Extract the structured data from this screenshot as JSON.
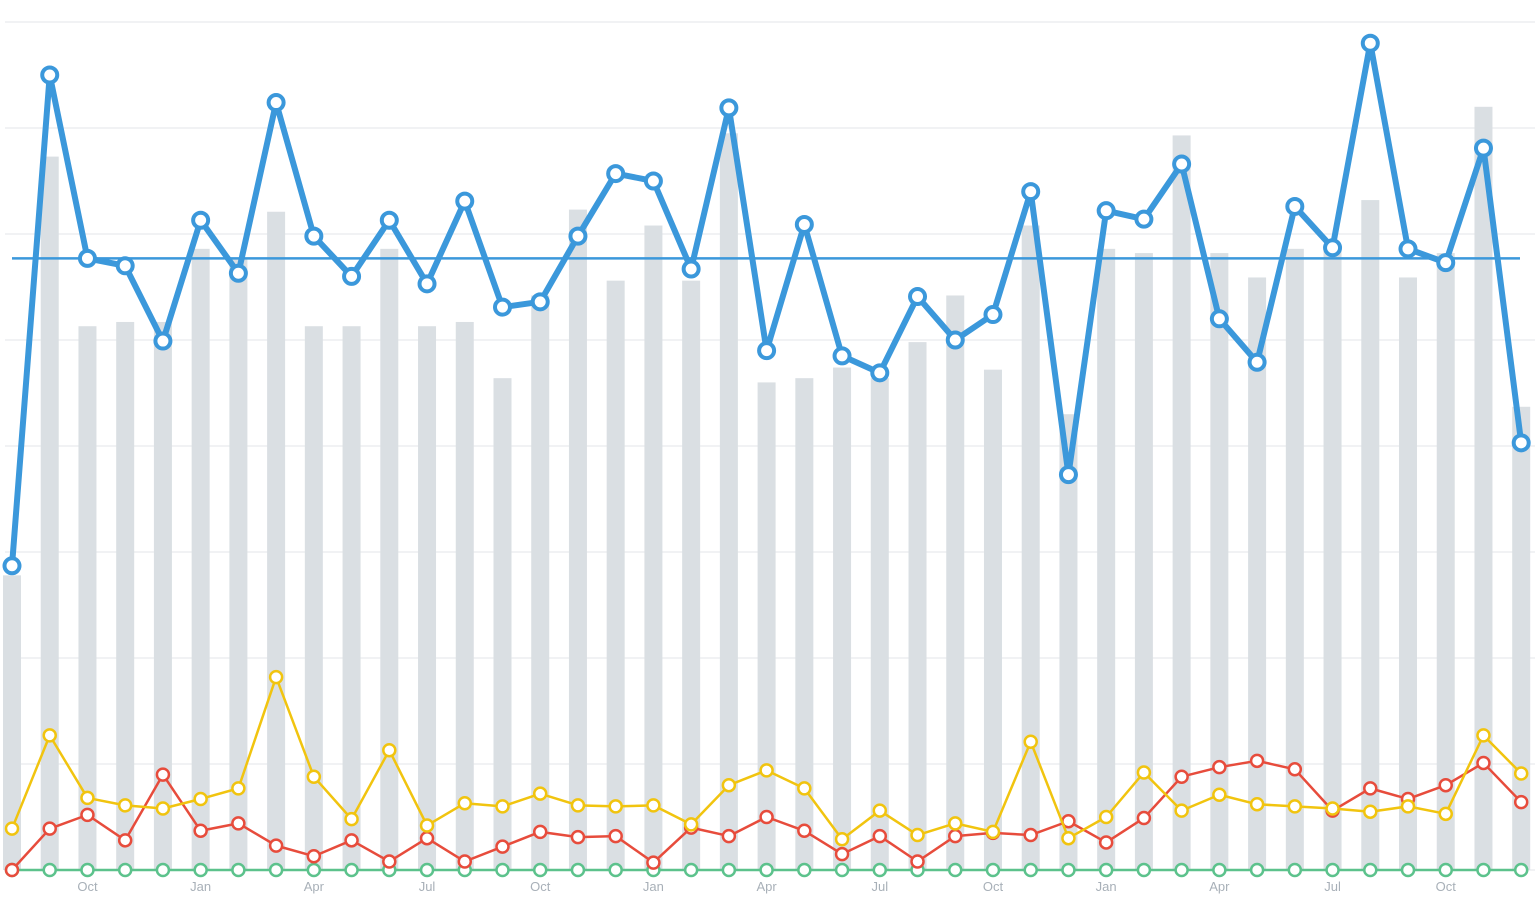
{
  "chart_data": {
    "type": "bar",
    "x_tick_labels": [
      "Oct",
      "Jan",
      "Apr",
      "Jul",
      "Oct",
      "Jan",
      "Apr",
      "Jul",
      "Oct",
      "Jan",
      "Apr",
      "Jul",
      "Oct"
    ],
    "x_tick_positions": [
      2,
      5,
      8,
      11,
      14,
      17,
      20,
      23,
      26,
      29,
      32,
      35,
      38
    ],
    "ylim": [
      0,
      8
    ],
    "grid": true,
    "legend": "none",
    "reference_line": 5.77,
    "colors": {
      "bars": "#dadfe3",
      "blue": "#3b98db",
      "yellow": "#f1c40f",
      "red": "#e74c3c",
      "green": "#5cc28c",
      "grid": "#e3e6e9",
      "tick_text": "#a8b0b8"
    },
    "bars": [
      2.78,
      6.73,
      5.13,
      5.17,
      5.17,
      5.86,
      5.76,
      6.21,
      5.13,
      5.13,
      5.86,
      5.13,
      5.17,
      4.64,
      5.42,
      6.23,
      5.56,
      6.08,
      5.56,
      6.95,
      4.6,
      4.64,
      4.74,
      4.64,
      4.98,
      5.42,
      4.72,
      6.08,
      4.3,
      5.86,
      5.82,
      6.93,
      5.82,
      5.59,
      5.86,
      5.86,
      6.32,
      5.59,
      5.82,
      7.2,
      4.37
    ],
    "series": [
      {
        "color": "blue",
        "values": [
          2.87,
          7.5,
          5.77,
          5.7,
          4.99,
          6.13,
          5.63,
          7.24,
          5.98,
          5.6,
          6.13,
          5.53,
          6.31,
          5.31,
          5.36,
          5.98,
          6.57,
          6.5,
          5.67,
          7.19,
          4.9,
          6.09,
          4.85,
          4.69,
          5.41,
          5.0,
          5.24,
          6.4,
          3.73,
          6.22,
          6.14,
          6.66,
          5.2,
          4.79,
          6.26,
          5.87,
          7.8,
          5.86,
          5.73,
          6.81,
          4.03
        ]
      },
      {
        "color": "yellow",
        "values": [
          0.39,
          1.27,
          0.68,
          0.61,
          0.58,
          0.67,
          0.77,
          1.82,
          0.88,
          0.48,
          1.13,
          0.42,
          0.63,
          0.6,
          0.72,
          0.61,
          0.6,
          0.61,
          0.43,
          0.8,
          0.94,
          0.77,
          0.29,
          0.56,
          0.33,
          0.44,
          0.36,
          1.21,
          0.3,
          0.5,
          0.92,
          0.56,
          0.71,
          0.62,
          0.6,
          0.58,
          0.55,
          0.6,
          0.53,
          1.27,
          0.91
        ]
      },
      {
        "color": "red",
        "values": [
          0.0,
          0.39,
          0.52,
          0.28,
          0.9,
          0.37,
          0.44,
          0.23,
          0.13,
          0.28,
          0.08,
          0.3,
          0.08,
          0.22,
          0.36,
          0.31,
          0.32,
          0.07,
          0.4,
          0.32,
          0.5,
          0.37,
          0.15,
          0.32,
          0.08,
          0.32,
          0.35,
          0.33,
          0.46,
          0.26,
          0.49,
          0.88,
          0.97,
          1.03,
          0.95,
          0.56,
          0.77,
          0.67,
          0.8,
          1.01,
          0.64
        ]
      },
      {
        "color": "green",
        "values": [
          0,
          0,
          0,
          0,
          0,
          0,
          0,
          0,
          0,
          0,
          0,
          0,
          0,
          0,
          0,
          0,
          0,
          0,
          0,
          0,
          0,
          0,
          0,
          0,
          0,
          0,
          0,
          0,
          0,
          0,
          0,
          0,
          0,
          0,
          0,
          0,
          0,
          0,
          0,
          0,
          0
        ]
      }
    ]
  }
}
